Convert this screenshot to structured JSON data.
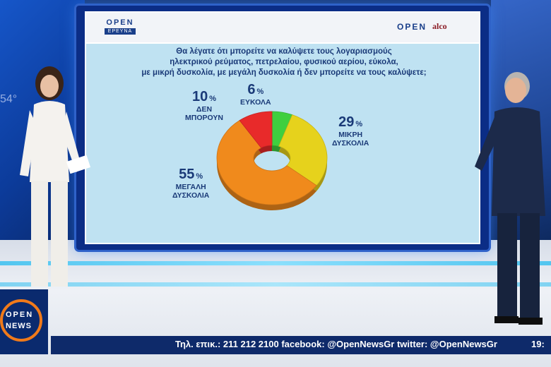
{
  "screen": {
    "header": {
      "left_logo": "OPEN",
      "left_logo_sub": "ΕΡΕΥΝΑ",
      "right_logo": "OPEN",
      "right_partner": "alco"
    },
    "question": [
      "Θα λέγατε ότι μπορείτε να καλύψετε τους λογαριασμούς",
      "ηλεκτρικού ρεύματος, πετρελαίου, φυσικού αερίου, εύκολα,",
      "με μικρή δυσκολία, με μεγάλη δυσκολία ή δεν μπορείτε να τους καλύψετε;"
    ]
  },
  "chart_data": {
    "type": "pie",
    "style": "donut-3d",
    "slices": [
      {
        "label": "ΕΥΚΟΛΑ",
        "value": 6,
        "color": "#3fcf3f"
      },
      {
        "label": "ΜΙΚΡΗ ΔΥΣΚΟΛΙΑ",
        "value": 29,
        "color": "#e6d21c"
      },
      {
        "label": "ΜΕΓΑΛΗ ΔΥΣΚΟΛΙΑ",
        "value": 55,
        "color": "#f08a1c"
      },
      {
        "label": "ΔΕΝ ΜΠΟΡΟΥΝ",
        "value": 10,
        "color": "#e82a2a"
      }
    ],
    "unit": "%",
    "label_lines": {
      "ΕΥΚΟΛΑ": [
        "ΕΥΚΟΛΑ"
      ],
      "ΜΙΚΡΗ ΔΥΣΚΟΛΙΑ": [
        "ΜΙΚΡΗ",
        "ΔΥΣΚΟΛΙΑ"
      ],
      "ΜΕΓΑΛΗ ΔΥΣΚΟΛΙΑ": [
        "ΜΕΓΑΛΗ",
        "ΔΥΣΚΟΛΙΑ"
      ],
      "ΔΕΝ ΜΠΟΡΟΥΝ": [
        "ΔΕΝ",
        "ΜΠΟΡΟΥΝ"
      ]
    }
  },
  "studio": {
    "left_wall_text": "54°"
  },
  "ticker": {
    "logo_top": "OPEN",
    "logo_bottom": "NEWS",
    "text": "Τηλ. επικ.: 211 212 2100 facebook: @OpenNewsGr twitter: @OpenNewsGr",
    "time": "19:"
  },
  "colors": {
    "panel_bg": "#bfe2f2",
    "brand_navy": "#1a3f8a",
    "text_navy": "#1a3a78",
    "ticker_bg": "#0e2a6a",
    "accent_orange": "#f07a1a"
  }
}
